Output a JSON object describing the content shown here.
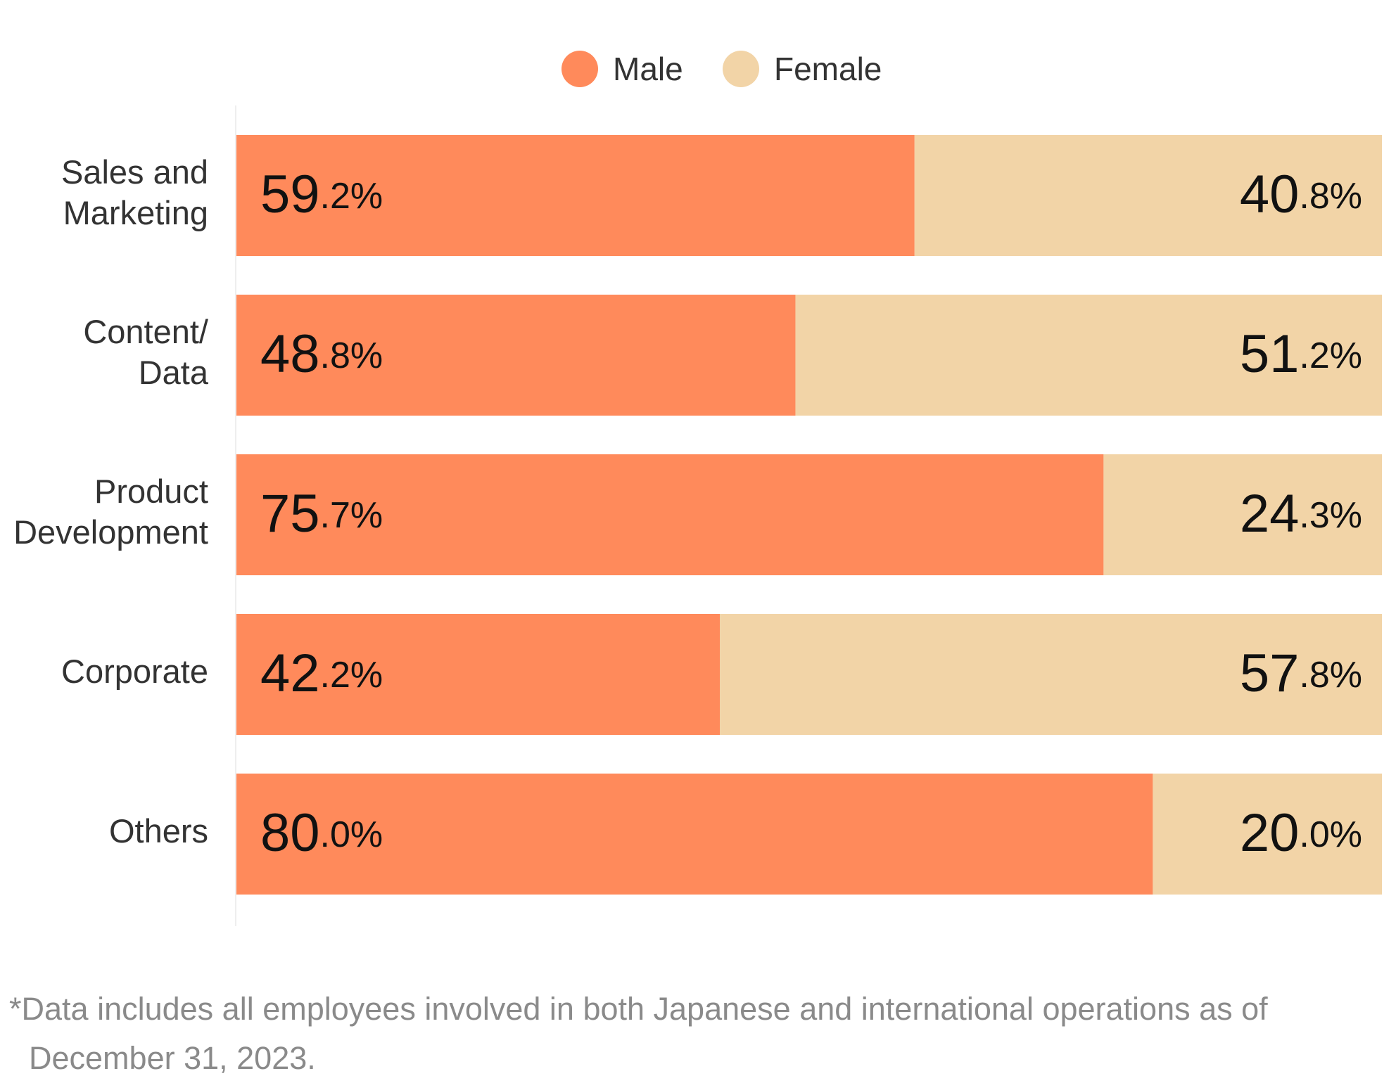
{
  "chart_data": {
    "type": "stacked-barh",
    "categories": [
      [
        "Sales and",
        "Marketing"
      ],
      [
        "Content/",
        "Data"
      ],
      [
        "Product",
        "Development"
      ],
      [
        "Corporate"
      ],
      [
        "Others"
      ]
    ],
    "xlim": [
      0,
      100
    ],
    "series": [
      {
        "name": "Male",
        "color": "#ff8a5b",
        "values": [
          59.2,
          48.8,
          75.7,
          42.2,
          80.0
        ],
        "value_labels": [
          "59.2%",
          "48.8%",
          "75.7%",
          "42.2%",
          "80.0%"
        ]
      },
      {
        "name": "Female",
        "color": "#f2d4a7",
        "values": [
          40.8,
          51.2,
          24.3,
          57.8,
          20.0
        ],
        "value_labels": [
          "40.8%",
          "51.2%",
          "24.3%",
          "57.8%",
          "20.0%"
        ]
      }
    ],
    "legend": "top",
    "footnote": "*Data includes all employees involved in both Japanese and international operations as of December 31, 2023."
  }
}
